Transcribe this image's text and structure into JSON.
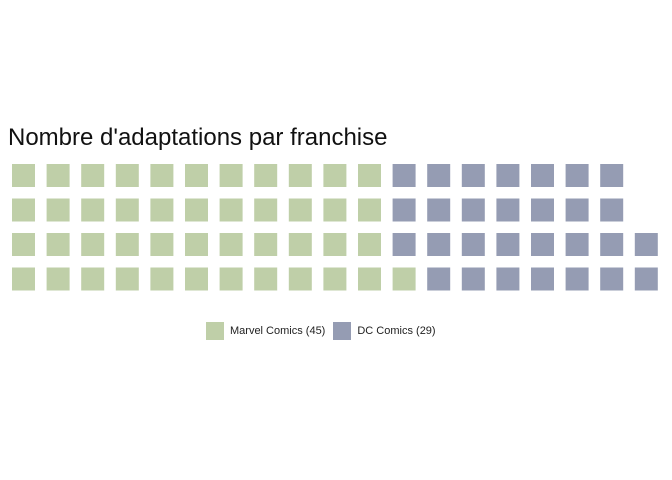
{
  "chart_data": {
    "type": "waffle",
    "title": "Nombre d'adaptations par franchise",
    "rows": 4,
    "series": [
      {
        "name": "Marvel Comics (45)",
        "value": 45,
        "color": "#bfcfa8"
      },
      {
        "name": "DC Comics (29)",
        "value": 29,
        "color": "#959cb3"
      }
    ],
    "legend_position": "bottom",
    "grid": false
  }
}
